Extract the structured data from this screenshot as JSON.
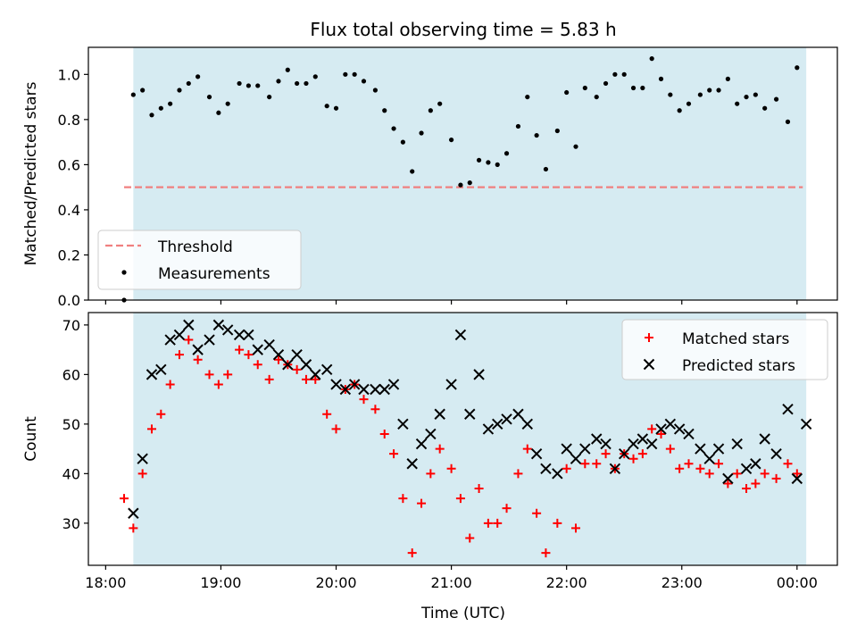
{
  "figure": {
    "title": "Flux total observing time = 5.83 h",
    "xlabel": "Time (UTC)",
    "x_ticks": [
      "18:00",
      "19:00",
      "20:00",
      "21:00",
      "22:00",
      "23:00",
      "00:00"
    ]
  },
  "chart_data": [
    {
      "type": "scatter",
      "ylabel": "Matched/Predicted stars",
      "ylim": [
        0,
        1.12
      ],
      "y_ticks": [
        "0.0",
        "0.2",
        "0.4",
        "0.6",
        "0.8",
        "1.0"
      ],
      "xlim_hours": [
        17.85,
        24.35
      ],
      "shaded_span_hours": [
        18.24,
        24.08
      ],
      "threshold": {
        "value": 0.5,
        "x_range_hours": [
          18.16,
          24.05
        ],
        "color": "#f08080"
      },
      "legend": {
        "position": "lower-left",
        "entries": [
          "Threshold",
          "Measurements"
        ]
      },
      "series": [
        {
          "name": "Measurements",
          "color": "#000000",
          "x_hours": [
            18.16,
            18.24,
            18.32,
            18.4,
            18.48,
            18.56,
            18.64,
            18.72,
            18.8,
            18.9,
            18.98,
            19.06,
            19.16,
            19.24,
            19.32,
            19.42,
            19.5,
            19.58,
            19.66,
            19.74,
            19.82,
            19.92,
            20.0,
            20.08,
            20.16,
            20.24,
            20.34,
            20.42,
            20.5,
            20.58,
            20.66,
            20.74,
            20.82,
            20.9,
            21.0,
            21.08,
            21.16,
            21.24,
            21.32,
            21.4,
            21.48,
            21.58,
            21.66,
            21.74,
            21.82,
            21.92,
            22.0,
            22.08,
            22.16,
            22.26,
            22.34,
            22.42,
            22.5,
            22.58,
            22.66,
            22.74,
            22.82,
            22.9,
            22.98,
            23.06,
            23.16,
            23.24,
            23.32,
            23.4,
            23.48,
            23.56,
            23.64,
            23.72,
            23.82,
            23.92,
            24.0
          ],
          "y": [
            0.0,
            0.91,
            0.93,
            0.82,
            0.85,
            0.87,
            0.93,
            0.96,
            0.99,
            0.9,
            0.83,
            0.87,
            0.96,
            0.95,
            0.95,
            0.9,
            0.97,
            1.02,
            0.96,
            0.96,
            0.99,
            0.86,
            0.85,
            1.0,
            1.0,
            0.97,
            0.93,
            0.84,
            0.76,
            0.7,
            0.57,
            0.74,
            0.84,
            0.87,
            0.71,
            0.51,
            0.52,
            0.62,
            0.61,
            0.6,
            0.65,
            0.77,
            0.9,
            0.73,
            0.58,
            0.75,
            0.92,
            0.68,
            0.94,
            0.9,
            0.96,
            1.0,
            1.0,
            0.94,
            0.94,
            1.07,
            0.98,
            0.91,
            0.84,
            0.87,
            0.91,
            0.93,
            0.93,
            0.98,
            0.87,
            0.9,
            0.91,
            0.85,
            0.89,
            0.79,
            1.03
          ]
        }
      ]
    },
    {
      "type": "scatter",
      "ylabel": "Count",
      "ylim": [
        21.5,
        72.5
      ],
      "y_ticks": [
        "30",
        "40",
        "50",
        "60",
        "70"
      ],
      "xlim_hours": [
        17.85,
        24.35
      ],
      "shaded_span_hours": [
        18.24,
        24.08
      ],
      "legend": {
        "position": "top-right",
        "entries": [
          "Matched stars",
          "Predicted stars"
        ]
      },
      "series": [
        {
          "name": "Matched stars",
          "marker": "+",
          "color": "#ff0000",
          "x_hours": [
            18.16,
            18.24,
            18.32,
            18.4,
            18.48,
            18.56,
            18.64,
            18.72,
            18.8,
            18.9,
            18.98,
            19.06,
            19.16,
            19.24,
            19.32,
            19.42,
            19.5,
            19.58,
            19.66,
            19.74,
            19.82,
            19.92,
            20.0,
            20.08,
            20.16,
            20.24,
            20.34,
            20.42,
            20.5,
            20.58,
            20.66,
            20.74,
            20.82,
            20.9,
            21.0,
            21.08,
            21.16,
            21.24,
            21.32,
            21.4,
            21.48,
            21.58,
            21.66,
            21.74,
            21.82,
            21.92,
            22.0,
            22.08,
            22.16,
            22.26,
            22.34,
            22.42,
            22.5,
            22.58,
            22.66,
            22.74,
            22.82,
            22.9,
            22.98,
            23.06,
            23.16,
            23.24,
            23.32,
            23.4,
            23.48,
            23.56,
            23.64,
            23.72,
            23.82,
            23.92,
            24.0
          ],
          "y": [
            35,
            29,
            40,
            49,
            52,
            58,
            64,
            67,
            63,
            60,
            58,
            60,
            65,
            64,
            62,
            59,
            63,
            62,
            61,
            59,
            59,
            52,
            49,
            57,
            58,
            55,
            53,
            48,
            44,
            35,
            24,
            34,
            40,
            45,
            41,
            35,
            27,
            37,
            30,
            30,
            33,
            40,
            45,
            32,
            24,
            30,
            41,
            29,
            42,
            42,
            44,
            41,
            44,
            43,
            44,
            49,
            48,
            45,
            41,
            42,
            41,
            40,
            42,
            38,
            40,
            37,
            38,
            40,
            39,
            42,
            40
          ]
        },
        {
          "name": "Predicted stars",
          "marker": "x",
          "color": "#000000",
          "x_hours": [
            18.24,
            18.32,
            18.4,
            18.48,
            18.56,
            18.64,
            18.72,
            18.8,
            18.9,
            18.98,
            19.06,
            19.16,
            19.24,
            19.32,
            19.42,
            19.5,
            19.58,
            19.66,
            19.74,
            19.82,
            19.92,
            20.0,
            20.08,
            20.16,
            20.24,
            20.34,
            20.42,
            20.5,
            20.58,
            20.66,
            20.74,
            20.82,
            20.9,
            21.0,
            21.08,
            21.16,
            21.24,
            21.32,
            21.4,
            21.48,
            21.58,
            21.66,
            21.74,
            21.82,
            21.92,
            22.0,
            22.08,
            22.16,
            22.26,
            22.34,
            22.42,
            22.5,
            22.58,
            22.66,
            22.74,
            22.82,
            22.9,
            22.98,
            23.06,
            23.16,
            23.24,
            23.32,
            23.4,
            23.48,
            23.56,
            23.64,
            23.72,
            23.82,
            23.92,
            24.0,
            24.08
          ],
          "y": [
            32,
            43,
            60,
            61,
            67,
            68,
            70,
            65,
            67,
            70,
            69,
            68,
            68,
            65,
            66,
            64,
            62,
            64,
            62,
            60,
            61,
            58,
            57,
            58,
            57,
            57,
            57,
            58,
            50,
            42,
            46,
            48,
            52,
            58,
            68,
            52,
            60,
            49,
            50,
            51,
            52,
            50,
            44,
            41,
            40,
            45,
            43,
            45,
            47,
            46,
            41,
            44,
            46,
            47,
            46,
            49,
            50,
            49,
            48,
            45,
            43,
            45,
            39,
            46,
            41,
            42,
            47,
            44,
            53,
            39,
            50
          ]
        }
      ]
    }
  ]
}
